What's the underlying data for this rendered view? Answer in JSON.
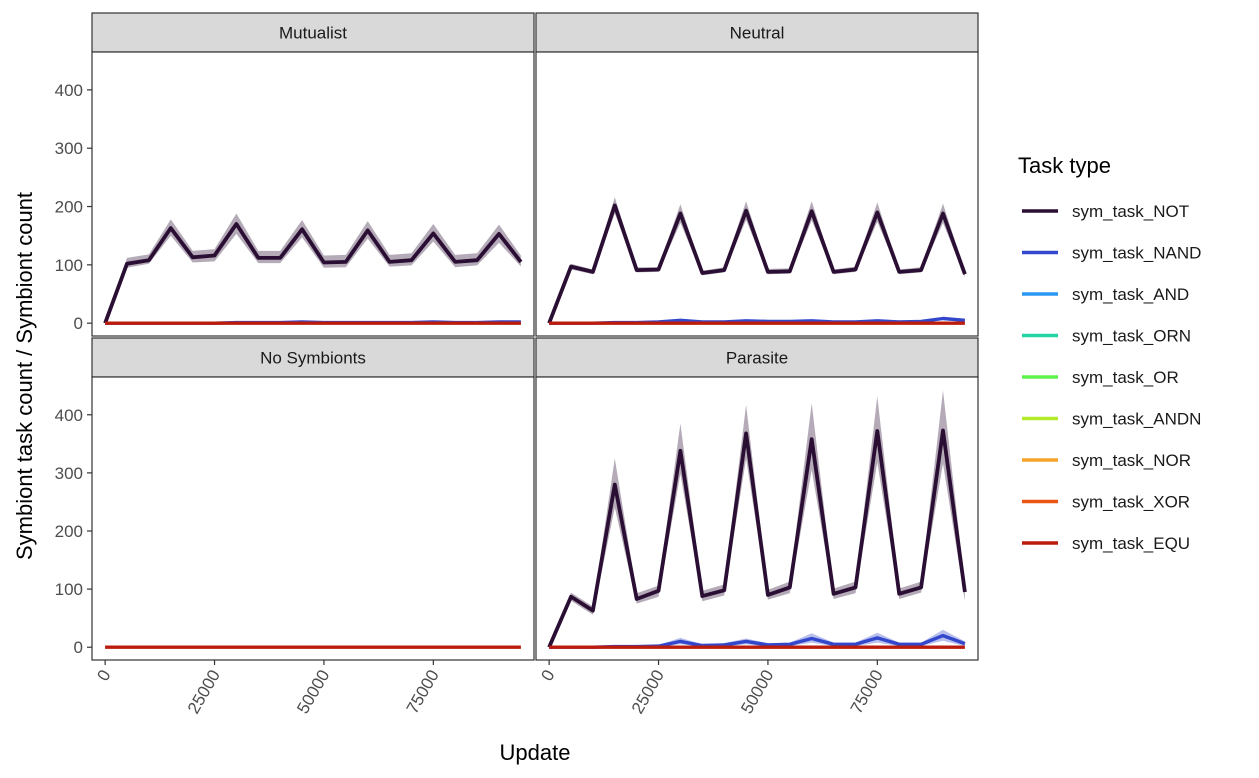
{
  "chart_data": {
    "type": "line",
    "xlabel": "Update",
    "ylabel": "Symbiont task count / Symbiont count",
    "xlim": [
      -3000,
      98000
    ],
    "ylim": [
      -22,
      465
    ],
    "x_ticks": [
      0,
      25000,
      50000,
      75000
    ],
    "x_tick_labels": [
      "0",
      "25000",
      "50000",
      "75000"
    ],
    "y_ticks": [
      0,
      100,
      200,
      300,
      400
    ],
    "y_tick_labels": [
      "0",
      "100",
      "200",
      "300",
      "400"
    ],
    "facet_layout": "2x2",
    "grid": false,
    "legend": {
      "title": "Task type",
      "position": "right",
      "entries": [
        "sym_task_NOT",
        "sym_task_NAND",
        "sym_task_AND",
        "sym_task_ORN",
        "sym_task_OR",
        "sym_task_ANDN",
        "sym_task_NOR",
        "sym_task_XOR",
        "sym_task_EQU"
      ]
    },
    "series_colors": {
      "sym_task_NOT": "#2a0e34",
      "sym_task_NAND": "#3347cc",
      "sym_task_AND": "#2b97f3",
      "sym_task_ORN": "#22d5a4",
      "sym_task_OR": "#5ef24c",
      "sym_task_ANDN": "#b5ea2c",
      "sym_task_NOR": "#f5a42a",
      "sym_task_XOR": "#ea5515",
      "sym_task_EQU": "#bb1c0c"
    },
    "x": [
      0,
      5000,
      10000,
      15000,
      20000,
      25000,
      30000,
      35000,
      40000,
      45000,
      50000,
      55000,
      60000,
      65000,
      70000,
      75000,
      80000,
      85000,
      90000,
      95000
    ],
    "panels": [
      {
        "title": "Mutualist",
        "series": [
          {
            "name": "sym_task_NOT",
            "values": [
              0,
              102,
              108,
              163,
              113,
              116,
              170,
              112,
              112,
              161,
              104,
              105,
              159,
              105,
              108,
              154,
              105,
              108,
              153,
              105
            ],
            "lower": [
              0,
              95,
              102,
              150,
              104,
              106,
              153,
              103,
              103,
              147,
              95,
              96,
              145,
              97,
              99,
              140,
              96,
              99,
              138,
              97
            ],
            "upper": [
              0,
              112,
              118,
              178,
              124,
              127,
              188,
              124,
              124,
              177,
              116,
              117,
              175,
              117,
              120,
              170,
              117,
              120,
              169,
              116
            ]
          },
          {
            "name": "sym_task_NAND",
            "values": [
              0,
              0,
              0,
              0,
              0,
              0,
              1,
              1,
              1,
              2,
              1,
              1,
              1,
              1,
              1,
              2,
              1,
              1,
              2,
              2
            ]
          },
          {
            "name": "sym_task_EQU",
            "values": [
              0,
              0,
              0,
              0,
              0,
              0,
              0,
              0,
              0,
              0,
              0,
              0,
              0,
              0,
              0,
              0,
              0,
              0,
              0,
              0
            ]
          }
        ]
      },
      {
        "title": "Neutral",
        "series": [
          {
            "name": "sym_task_NOT",
            "values": [
              0,
              97,
              88,
              202,
              91,
              92,
              188,
              86,
              91,
              193,
              88,
              89,
              192,
              88,
              92,
              190,
              88,
              91,
              188,
              84
            ],
            "lower": [
              0,
              92,
              84,
              188,
              87,
              88,
              172,
              82,
              87,
              177,
              84,
              85,
              176,
              84,
              88,
              174,
              84,
              87,
              172,
              79
            ],
            "upper": [
              0,
              102,
              92,
              216,
              96,
              96,
              204,
              90,
              96,
              209,
              93,
              94,
              209,
              92,
              97,
              207,
              92,
              96,
              205,
              88
            ]
          },
          {
            "name": "sym_task_NAND",
            "values": [
              0,
              0,
              0,
              1,
              1,
              2,
              5,
              2,
              2,
              4,
              3,
              3,
              4,
              2,
              2,
              4,
              2,
              3,
              8,
              5
            ]
          },
          {
            "name": "sym_task_EQU",
            "values": [
              0,
              0,
              0,
              0,
              0,
              0,
              0,
              0,
              0,
              0,
              0,
              0,
              0,
              0,
              0,
              0,
              0,
              0,
              0,
              0
            ]
          }
        ]
      },
      {
        "title": "No Symbionts",
        "series": [
          {
            "name": "sym_task_EQU",
            "values": [
              0,
              0,
              0,
              0,
              0,
              0,
              0,
              0,
              0,
              0,
              0,
              0,
              0,
              0,
              0,
              0,
              0,
              0,
              0,
              0
            ]
          }
        ]
      },
      {
        "title": "Parasite",
        "series": [
          {
            "name": "sym_task_NOT",
            "values": [
              0,
              87,
              63,
              280,
              83,
              97,
              338,
              88,
              98,
              368,
              90,
              103,
              358,
              92,
              103,
              372,
              92,
              103,
              373,
              95
            ],
            "lower": [
              0,
              80,
              56,
              240,
              75,
              87,
              298,
              79,
              89,
              324,
              82,
              93,
              305,
              83,
              93,
              318,
              83,
              94,
              316,
              80
            ],
            "upper": [
              0,
              94,
              70,
              325,
              93,
              106,
              385,
              97,
              108,
              417,
              99,
              113,
              420,
              101,
              113,
              432,
              101,
              113,
              442,
              108
            ]
          },
          {
            "name": "sym_task_NAND",
            "values": [
              0,
              0,
              0,
              1,
              1,
              2,
              10,
              3,
              4,
              10,
              4,
              5,
              15,
              5,
              5,
              16,
              5,
              5,
              20,
              6
            ],
            "lower": [
              0,
              0,
              0,
              0,
              0,
              0,
              5,
              1,
              1,
              5,
              1,
              2,
              8,
              2,
              2,
              8,
              2,
              2,
              11,
              2
            ],
            "upper": [
              0,
              0,
              0,
              2,
              2,
              4,
              16,
              5,
              7,
              15,
              7,
              8,
              24,
              8,
              8,
              25,
              8,
              8,
              30,
              10
            ]
          },
          {
            "name": "sym_task_EQU",
            "values": [
              0,
              0,
              0,
              0,
              0,
              0,
              0,
              0,
              0,
              0,
              0,
              0,
              0,
              0,
              0,
              0,
              0,
              0,
              0,
              0
            ]
          }
        ]
      }
    ]
  }
}
